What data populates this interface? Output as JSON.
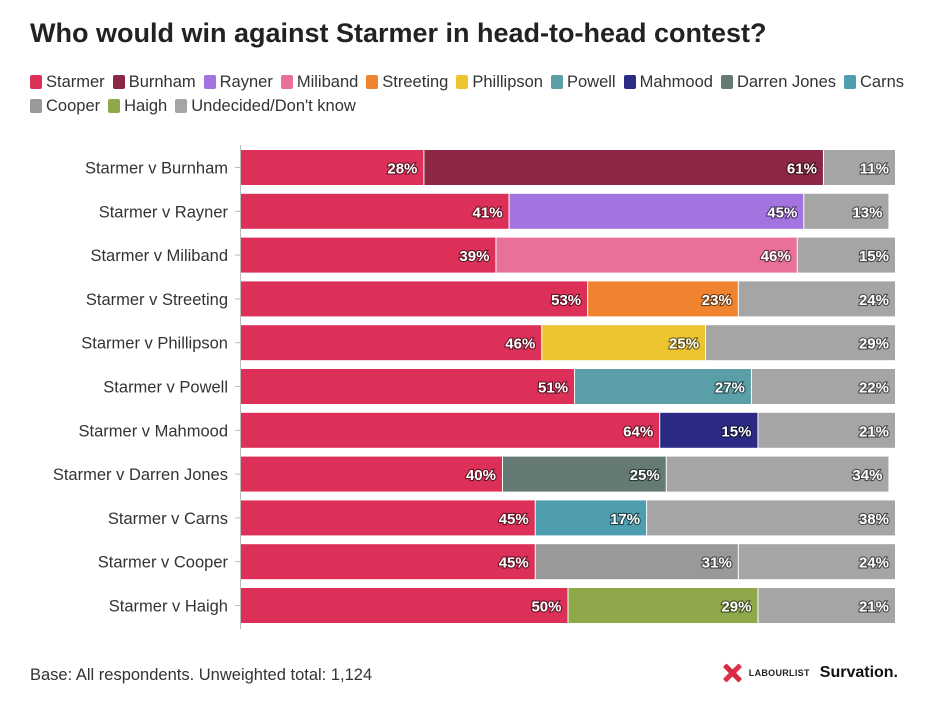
{
  "title": "Who would win against Starmer in head-to-head contest?",
  "legend": [
    {
      "label": "Starmer",
      "color": "#dc3059"
    },
    {
      "label": "Burnham",
      "color": "#8b2744"
    },
    {
      "label": "Rayner",
      "color": "#a373e0"
    },
    {
      "label": "Miliband",
      "color": "#e8709b"
    },
    {
      "label": "Streeting",
      "color": "#ef8330"
    },
    {
      "label": "Phillipson",
      "color": "#ebc430"
    },
    {
      "label": "Powell",
      "color": "#5a9fa8"
    },
    {
      "label": "Mahmood",
      "color": "#2b2a84"
    },
    {
      "label": "Darren Jones",
      "color": "#657a73"
    },
    {
      "label": "Carns",
      "color": "#4e9eb0"
    },
    {
      "label": "Cooper",
      "color": "#999999"
    },
    {
      "label": "Haigh",
      "color": "#8fa94a"
    },
    {
      "label": "Undecided/Don't know",
      "color": "#a5a5a5"
    }
  ],
  "chart_data": {
    "type": "bar",
    "orientation": "horizontal",
    "stacked": true,
    "title": "Who would win against Starmer in head-to-head contest?",
    "xlim": [
      0,
      100
    ],
    "unit": "%",
    "grid": false,
    "legend_position": "top",
    "rows": [
      {
        "category": "Starmer v Burnham",
        "segments": [
          {
            "series": "Starmer",
            "value": 28,
            "label": "28%",
            "color": "#dc3059"
          },
          {
            "series": "Burnham",
            "value": 61,
            "label": "61%",
            "color": "#8b2744"
          },
          {
            "series": "Undecided/Don't know",
            "value": 11,
            "label": "11%",
            "color": "#a5a5a5"
          }
        ]
      },
      {
        "category": "Starmer v Rayner",
        "segments": [
          {
            "series": "Starmer",
            "value": 41,
            "label": "41%",
            "color": "#dc3059"
          },
          {
            "series": "Rayner",
            "value": 45,
            "label": "45%",
            "color": "#a373e0"
          },
          {
            "series": "Undecided/Don't know",
            "value": 13,
            "label": "13%",
            "color": "#a5a5a5"
          }
        ]
      },
      {
        "category": "Starmer v Miliband",
        "segments": [
          {
            "series": "Starmer",
            "value": 39,
            "label": "39%",
            "color": "#dc3059"
          },
          {
            "series": "Miliband",
            "value": 46,
            "label": "46%",
            "color": "#e8709b"
          },
          {
            "series": "Undecided/Don't know",
            "value": 15,
            "label": "15%",
            "color": "#a5a5a5"
          }
        ]
      },
      {
        "category": "Starmer v Streeting",
        "segments": [
          {
            "series": "Starmer",
            "value": 53,
            "label": "53%",
            "color": "#dc3059"
          },
          {
            "series": "Streeting",
            "value": 23,
            "label": "23%",
            "color": "#ef8330"
          },
          {
            "series": "Undecided/Don't know",
            "value": 24,
            "label": "24%",
            "color": "#a5a5a5"
          }
        ]
      },
      {
        "category": "Starmer v Phillipson",
        "segments": [
          {
            "series": "Starmer",
            "value": 46,
            "label": "46%",
            "color": "#dc3059"
          },
          {
            "series": "Phillipson",
            "value": 25,
            "label": "25%",
            "color": "#ebc430"
          },
          {
            "series": "Undecided/Don't know",
            "value": 29,
            "label": "29%",
            "color": "#a5a5a5"
          }
        ]
      },
      {
        "category": "Starmer v Powell",
        "segments": [
          {
            "series": "Starmer",
            "value": 51,
            "label": "51%",
            "color": "#dc3059"
          },
          {
            "series": "Powell",
            "value": 27,
            "label": "27%",
            "color": "#5a9fa8"
          },
          {
            "series": "Undecided/Don't know",
            "value": 22,
            "label": "22%",
            "color": "#a5a5a5"
          }
        ]
      },
      {
        "category": "Starmer v Mahmood",
        "segments": [
          {
            "series": "Starmer",
            "value": 64,
            "label": "64%",
            "color": "#dc3059"
          },
          {
            "series": "Mahmood",
            "value": 15,
            "label": "15%",
            "color": "#2b2a84"
          },
          {
            "series": "Undecided/Don't know",
            "value": 21,
            "label": "21%",
            "color": "#a5a5a5"
          }
        ]
      },
      {
        "category": "Starmer v Darren Jones",
        "segments": [
          {
            "series": "Starmer",
            "value": 40,
            "label": "40%",
            "color": "#dc3059"
          },
          {
            "series": "Darren Jones",
            "value": 25,
            "label": "25%",
            "color": "#657a73"
          },
          {
            "series": "Undecided/Don't know",
            "value": 34,
            "label": "34%",
            "color": "#a5a5a5"
          }
        ]
      },
      {
        "category": "Starmer v Carns",
        "segments": [
          {
            "series": "Starmer",
            "value": 45,
            "label": "45%",
            "color": "#dc3059"
          },
          {
            "series": "Carns",
            "value": 17,
            "label": "17%",
            "color": "#4e9eb0"
          },
          {
            "series": "Undecided/Don't know",
            "value": 38,
            "label": "38%",
            "color": "#a5a5a5"
          }
        ]
      },
      {
        "category": "Starmer v Cooper",
        "segments": [
          {
            "series": "Starmer",
            "value": 45,
            "label": "45%",
            "color": "#dc3059"
          },
          {
            "series": "Cooper",
            "value": 31,
            "label": "31%",
            "color": "#999999"
          },
          {
            "series": "Undecided/Don't know",
            "value": 24,
            "label": "24%",
            "color": "#a5a5a5"
          }
        ]
      },
      {
        "category": "Starmer v Haigh",
        "segments": [
          {
            "series": "Starmer",
            "value": 50,
            "label": "50%",
            "color": "#dc3059"
          },
          {
            "series": "Haigh",
            "value": 29,
            "label": "29%",
            "color": "#8fa94a"
          },
          {
            "series": "Undecided/Don't know",
            "value": 21,
            "label": "21%",
            "color": "#a5a5a5"
          }
        ]
      }
    ]
  },
  "footer": "Base: All respondents. Unweighted total: 1,124",
  "logos": {
    "labourlist": "LABOURLIST",
    "survation": "Survation."
  }
}
